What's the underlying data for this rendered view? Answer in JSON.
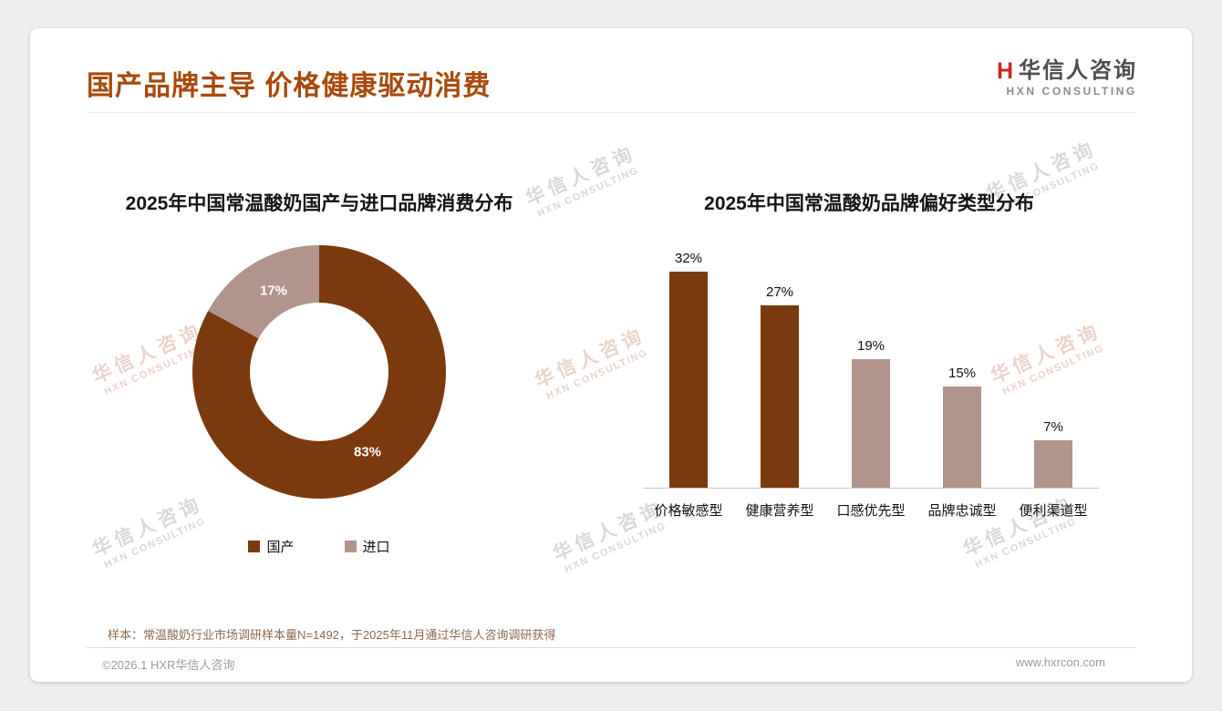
{
  "theme": {
    "accent_title": "#a8490b",
    "dark_brown": "#7b3a0d",
    "light_mauve": "#b2948d",
    "footnote_color": "#8a6a50",
    "logo_red": "#c22a21"
  },
  "header": {
    "title": "国产品牌主导 价格健康驱动消费"
  },
  "logo": {
    "mark": "H",
    "cn": "华信人咨询",
    "en": "HXN CONSULTING"
  },
  "chart_data": [
    {
      "type": "pie",
      "donut": true,
      "title": "2025年中国常温酸奶国产与进口品牌消费分布",
      "labels": [
        "国产",
        "进口"
      ],
      "values": [
        83,
        17
      ],
      "data_labels": [
        "83%",
        "17%"
      ],
      "colors": [
        "#7b3a0d",
        "#b2948d"
      ],
      "legend_position": "bottom"
    },
    {
      "type": "bar",
      "title": "2025年中国常温酸奶品牌偏好类型分布",
      "categories": [
        "价格敏感型",
        "健康营养型",
        "口感优先型",
        "品牌忠诚型",
        "便利渠道型"
      ],
      "values": [
        32,
        27,
        19,
        15,
        7
      ],
      "data_labels": [
        "32%",
        "27%",
        "19%",
        "15%",
        "7%"
      ],
      "colors": [
        "#7b3a0d",
        "#7b3a0d",
        "#b2948d",
        "#b2948d",
        "#b2948d"
      ],
      "xlabel": "",
      "ylabel": "",
      "ylim": [
        0,
        35
      ],
      "grid": false,
      "legend": "none"
    }
  ],
  "footnote": {
    "text": "样本：常温酸奶行业市场调研样本量N=1492，于2025年11月通过华信人咨询调研获得"
  },
  "footer": {
    "left": "©2026.1 HXR华信人咨询",
    "right": "www.hxrcon.com"
  },
  "watermark": {
    "line1": "华信人咨询",
    "line2": "HXN CONSULTING"
  }
}
